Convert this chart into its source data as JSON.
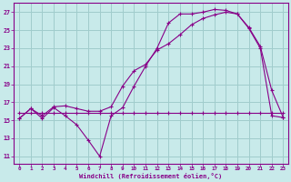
{
  "xlabel": "Windchill (Refroidissement éolien,°C)",
  "bg_color": "#c8eaea",
  "grid_color": "#a0cccc",
  "line_color": "#880088",
  "xlim_min": -0.5,
  "xlim_max": 23.4,
  "ylim_min": 10.2,
  "ylim_max": 28.0,
  "yticks": [
    11,
    13,
    15,
    17,
    19,
    21,
    23,
    25,
    27
  ],
  "xticks": [
    0,
    1,
    2,
    3,
    4,
    5,
    6,
    7,
    8,
    9,
    10,
    11,
    12,
    13,
    14,
    15,
    16,
    17,
    18,
    19,
    20,
    21,
    22,
    23
  ],
  "line_flat_x": [
    0,
    1,
    2,
    3,
    4,
    5,
    6,
    7,
    8,
    9,
    10,
    11,
    12,
    13,
    14,
    15,
    16,
    17,
    18,
    19,
    20,
    21,
    22,
    23
  ],
  "line_flat_y": [
    15.8,
    15.8,
    15.8,
    15.8,
    15.8,
    15.8,
    15.8,
    15.8,
    15.8,
    15.8,
    15.8,
    15.8,
    15.8,
    15.8,
    15.8,
    15.8,
    15.8,
    15.8,
    15.8,
    15.8,
    15.8,
    15.8,
    15.8,
    15.8
  ],
  "line_dip_x": [
    0,
    1,
    2,
    3,
    4,
    5,
    6,
    7,
    8,
    9,
    10,
    11,
    12,
    13,
    14,
    15,
    16,
    17,
    18,
    19,
    20,
    21,
    22,
    23
  ],
  "line_dip_y": [
    15.2,
    16.3,
    15.2,
    16.4,
    15.5,
    14.5,
    12.8,
    11.0,
    15.5,
    16.4,
    18.8,
    21.0,
    23.0,
    25.8,
    26.8,
    26.8,
    27.0,
    27.3,
    27.2,
    26.8,
    25.3,
    23.2,
    18.3,
    15.3
  ],
  "line_rise_x": [
    0,
    1,
    2,
    3,
    4,
    5,
    6,
    7,
    8,
    9,
    10,
    11,
    12,
    13,
    14,
    15,
    16,
    17,
    18,
    19,
    20,
    21,
    22,
    23
  ],
  "line_rise_y": [
    15.2,
    16.3,
    15.5,
    16.5,
    16.6,
    16.3,
    16.0,
    16.0,
    16.5,
    18.8,
    20.5,
    21.2,
    22.8,
    23.5,
    24.5,
    25.6,
    26.3,
    26.7,
    27.0,
    26.8,
    25.2,
    23.0,
    15.5,
    15.3
  ]
}
